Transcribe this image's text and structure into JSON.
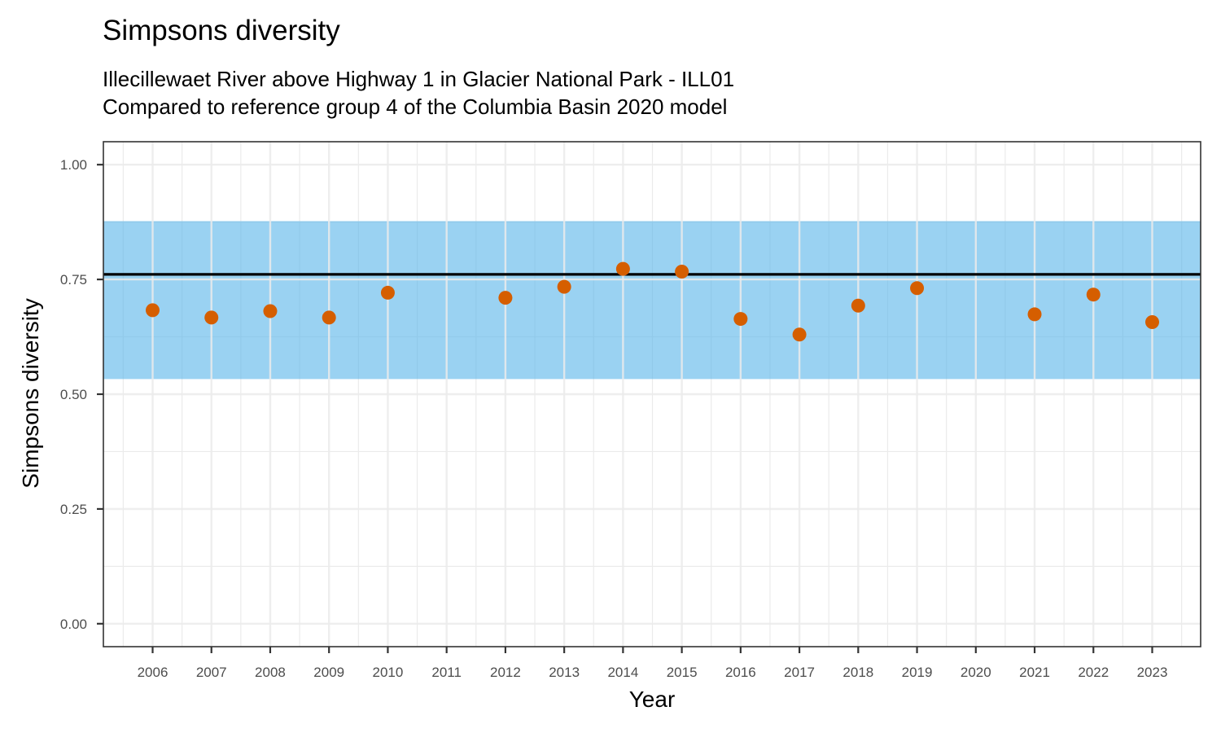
{
  "chart_data": {
    "type": "scatter",
    "title": "Simpsons diversity",
    "subtitle_lines": [
      "Illecillewaet River above Highway 1 in Glacier National Park - ILL01",
      "Compared to reference group 4 of the Columbia Basin 2020 model"
    ],
    "xlabel": "Year",
    "ylabel": "Simpsons diversity",
    "x_categories": [
      "2006",
      "2007",
      "2008",
      "2009",
      "2010",
      "2011",
      "2012",
      "2013",
      "2014",
      "2015",
      "2016",
      "2017",
      "2018",
      "2019",
      "2020",
      "2021",
      "2022",
      "2023"
    ],
    "ylim": [
      -0.05,
      1.05
    ],
    "y_ticks": [
      0.0,
      0.25,
      0.5,
      0.75,
      1.0
    ],
    "y_tick_labels": [
      "0.00",
      "0.25",
      "0.50",
      "0.75",
      "1.00"
    ],
    "reference_band": {
      "low": 0.533,
      "high": 0.877,
      "color": "#56B4E9"
    },
    "reference_line": {
      "value": 0.761,
      "color": "#000000"
    },
    "point_color": "#D55E00",
    "grid": true,
    "points": [
      {
        "x": "2006",
        "y": 0.683
      },
      {
        "x": "2007",
        "y": 0.667
      },
      {
        "x": "2008",
        "y": 0.681
      },
      {
        "x": "2009",
        "y": 0.667
      },
      {
        "x": "2010",
        "y": 0.721
      },
      {
        "x": "2012",
        "y": 0.71
      },
      {
        "x": "2013",
        "y": 0.734
      },
      {
        "x": "2014",
        "y": 0.773
      },
      {
        "x": "2015",
        "y": 0.767
      },
      {
        "x": "2016",
        "y": 0.664
      },
      {
        "x": "2017",
        "y": 0.63
      },
      {
        "x": "2018",
        "y": 0.693
      },
      {
        "x": "2019",
        "y": 0.731
      },
      {
        "x": "2021",
        "y": 0.674
      },
      {
        "x": "2022",
        "y": 0.717
      },
      {
        "x": "2023",
        "y": 0.657
      }
    ]
  }
}
